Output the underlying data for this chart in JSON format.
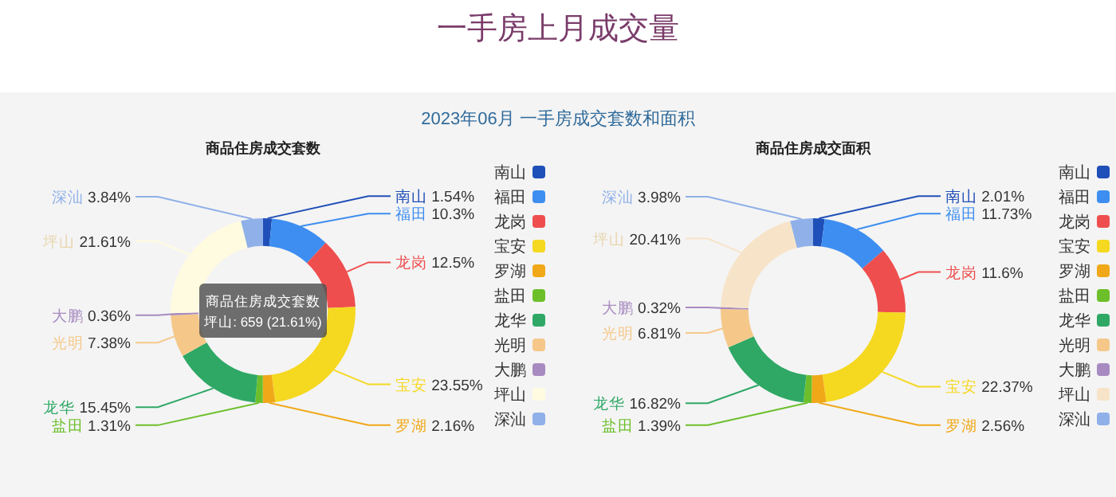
{
  "chart_data": [
    {
      "type": "donut",
      "title": "商品住房成交套数",
      "legend": "right",
      "categories": [
        "南山",
        "福田",
        "龙岗",
        "宝安",
        "罗湖",
        "盐田",
        "龙华",
        "光明",
        "大鹏",
        "坪山",
        "深汕"
      ],
      "values": [
        1.54,
        10.3,
        12.5,
        23.55,
        2.16,
        1.31,
        15.45,
        7.38,
        0.36,
        21.61,
        3.84
      ],
      "value_labels": [
        "1.54%",
        "10.3%",
        "12.5%",
        "23.55%",
        "2.16%",
        "1.31%",
        "15.45%",
        "7.38%",
        "0.36%",
        "21.61%",
        "3.84%"
      ],
      "colors": [
        "#1f4fb8",
        "#3d8ef0",
        "#ef4e4e",
        "#f5d820",
        "#f0a818",
        "#6cbf2a",
        "#2fa866",
        "#f5c88a",
        "#a78bc0",
        "#fffbe0",
        "#8fb0e8"
      ],
      "annotations": [
        "一手房上月成交量",
        "2023年06月 一手房成交套数和面积",
        "商品住房成交套数",
        "坪山: 659 (21.61%)"
      ]
    },
    {
      "type": "donut",
      "title": "商品住房成交面积",
      "legend": "right",
      "categories": [
        "南山",
        "福田",
        "龙岗",
        "宝安",
        "罗湖",
        "盐田",
        "龙华",
        "光明",
        "大鹏",
        "坪山",
        "深汕"
      ],
      "values": [
        2.01,
        11.73,
        11.6,
        22.37,
        2.56,
        1.39,
        16.82,
        6.81,
        0.32,
        20.41,
        3.98
      ],
      "value_labels": [
        "2.01%",
        "11.73%",
        "11.6%",
        "22.37%",
        "2.56%",
        "1.39%",
        "16.82%",
        "6.81%",
        "0.32%",
        "20.41%",
        "3.98%"
      ],
      "colors": [
        "#1f4fb8",
        "#3d8ef0",
        "#ef4e4e",
        "#f5d820",
        "#f0a818",
        "#6cbf2a",
        "#2fa866",
        "#f5c88a",
        "#a78bc0",
        "#f7e4c8",
        "#8fb0e8"
      ]
    }
  ]
}
